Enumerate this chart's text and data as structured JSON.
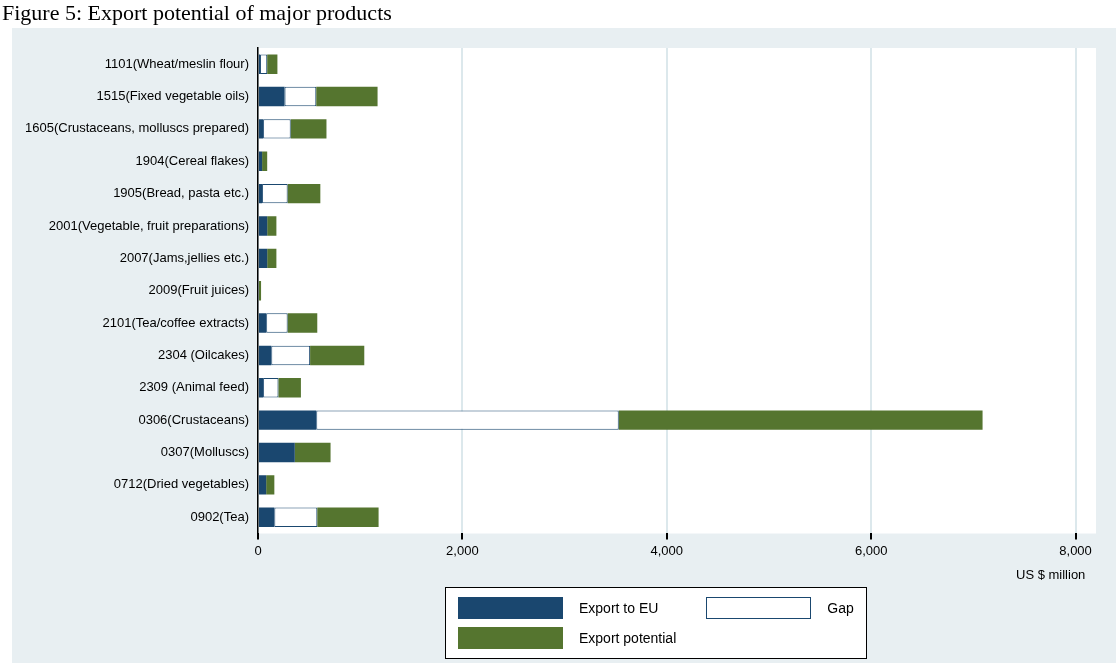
{
  "chart_data": {
    "type": "bar",
    "title": "Figure 5: Export potential of major products",
    "orientation": "horizontal",
    "stacked": true,
    "categories": [
      "1101(Wheat/meslin flour)",
      "1515(Fixed vegetable oils)",
      "1605(Crustaceans, molluscs prepared)",
      "1904(Cereal flakes)",
      "1905(Bread, pasta etc.)",
      "2001(Vegetable, fruit preparations)",
      "2007(Jams,jellies etc.)",
      "2009(Fruit juices)",
      "2101(Tea/coffee extracts)",
      "2304 (Oilcakes)",
      "2309 (Animal feed)",
      "0306(Crustaceans)",
      "0307(Molluscs)",
      "0712(Dried vegetables)",
      "0902(Tea)"
    ],
    "series": [
      {
        "name": "Export to EU",
        "color": "#1a476f",
        "values": [
          20,
          260,
          50,
          40,
          40,
          90,
          90,
          0,
          80,
          130,
          50,
          570,
          360,
          80,
          160
        ]
      },
      {
        "name": "Gap",
        "color": "#ffffff",
        "values": [
          70,
          310,
          270,
          0,
          250,
          0,
          0,
          0,
          210,
          380,
          150,
          2960,
          0,
          0,
          420
        ]
      },
      {
        "name": "Export potential",
        "color": "#55752f",
        "values": [
          100,
          600,
          350,
          50,
          320,
          90,
          90,
          30,
          290,
          530,
          220,
          3560,
          350,
          80,
          600
        ]
      }
    ],
    "xlabel": "US $ million",
    "xlim": [
      0,
      8200
    ],
    "xticks": [
      {
        "value": 0,
        "label": "0"
      },
      {
        "value": 2000,
        "label": "2,000"
      },
      {
        "value": 4000,
        "label": "4,000"
      },
      {
        "value": 6000,
        "label": "6,000"
      },
      {
        "value": 8000,
        "label": "8,000"
      }
    ],
    "grid": "x",
    "legend": "bottom"
  }
}
